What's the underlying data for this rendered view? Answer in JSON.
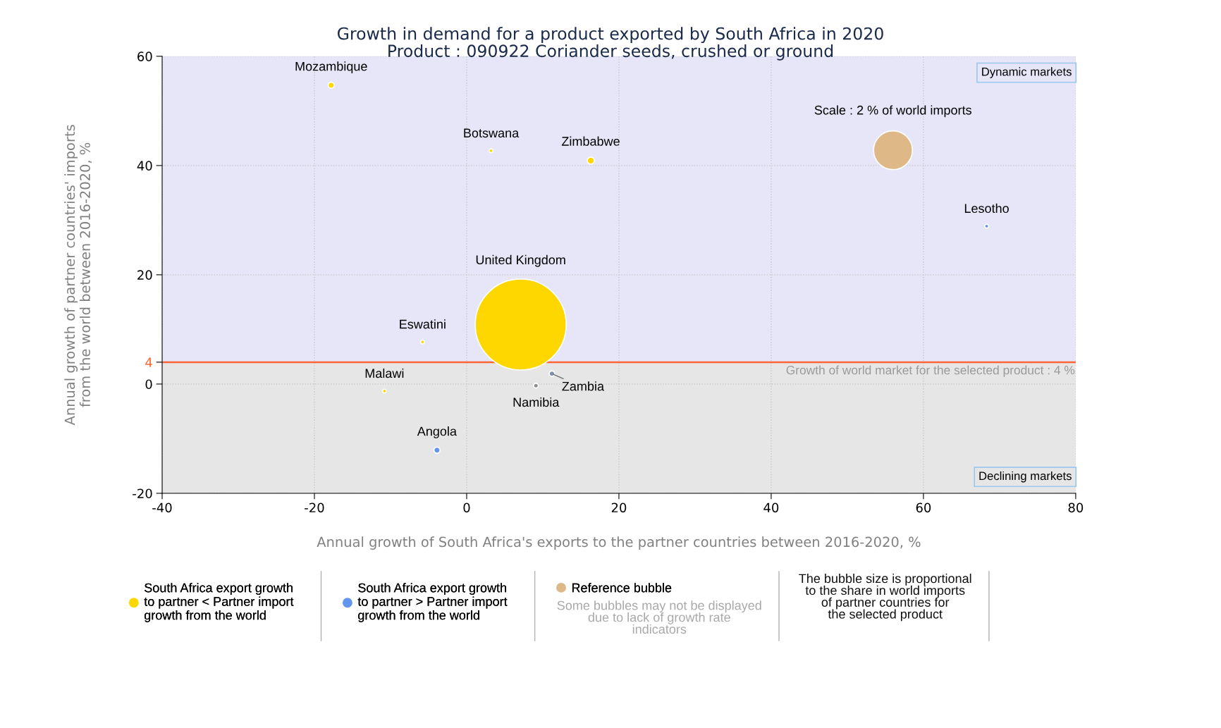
{
  "chart_data": {
    "type": "bubble",
    "title": "Growth in demand for a product exported by South Africa in 2020",
    "subtitle": "Product : 090922 Coriander seeds, crushed or ground",
    "xlabel": "Annual growth of South Africa's exports to the partner countries between 2016-2020, %",
    "ylabel": "Annual growth of partner countries' imports\nfrom the world between 2016-2020, %",
    "xlim": [
      -40,
      80
    ],
    "xticks": [
      -40,
      -20,
      0,
      20,
      40,
      60,
      80
    ],
    "ylim": [
      -20,
      60
    ],
    "yticks": [
      -20,
      0,
      {
        "value": 4,
        "label": "4"
      },
      20,
      40,
      60
    ],
    "grid": true,
    "legend": "bottom",
    "marker": "circle",
    "size_legend": [
      {
        "value": 2,
        "label": "Scale : 2 % of world imports"
      }
    ],
    "series": [
      {
        "name": "South Africa export growth\nto partner < Partner import\ngrowth from the world",
        "color": "#ffd700",
        "x": [
          -17.8,
          3.2,
          16.3,
          7.1,
          -5.8,
          -10.8
        ],
        "values": [
          54.7,
          42.7,
          40.9,
          10.9,
          7.7,
          -1.3
        ],
        "sizes": [
          0.05,
          0.02,
          0.065,
          11,
          0.02,
          0.02
        ]
      },
      {
        "name": "South Africa export growth\nto partner > Partner import\ngrowth from the world",
        "color": "#6495ed",
        "colors": [
          "#6495ed",
          "#6495ed",
          "#8c8c8c",
          "#7f8fb0"
        ],
        "x": [
          68.3,
          -3.9,
          9.1,
          11.2
        ],
        "values": [
          28.9,
          -12.1,
          -0.3,
          1.9
        ],
        "sizes": [
          0.02,
          0.05,
          0.03,
          0.04
        ]
      },
      {
        "name": "Reference bubble",
        "color": "#deb887"
      }
    ],
    "bands": [
      {
        "axis": "y",
        "from": 4,
        "to": 60,
        "label": "Dynamic markets",
        "color": "#e6e6f8"
      },
      {
        "axis": "y",
        "from": -20,
        "to": 4,
        "label": "Declining markets",
        "color": "#e6e6e6"
      }
    ],
    "ref_lines": [
      {
        "axis": "y",
        "value": 4,
        "label": "Growth of world market for the selected product : 4 %",
        "color": "#ff6633"
      }
    ],
    "annotations": [
      {
        "text": "Mozambique",
        "x": -17.8,
        "y": 54.7
      },
      {
        "text": "Botswana",
        "x": 3.2,
        "y": 42.7
      },
      {
        "text": "Zimbabwe",
        "x": 16.3,
        "y": 40.9
      },
      {
        "text": "United Kingdom",
        "x": 7.1,
        "y": 19.3
      },
      {
        "text": "Eswatini",
        "x": -5.8,
        "y": 7.7
      },
      {
        "text": "Malawi",
        "x": -10.8,
        "y": -1.3
      },
      {
        "text": "Lesotho",
        "x": 68.3,
        "y": 28.9
      },
      {
        "text": "Angola",
        "x": -3.9,
        "y": -12.1
      },
      {
        "text": "Namibia",
        "x": 9.1,
        "y": -0.3
      },
      {
        "text": "Zambia",
        "x": 11.2,
        "y": 1.9
      },
      "Some bubbles may not be displayed\ndue to lack of growth rate\nindicators",
      "The bubble size is proportional\nto the share in world imports\nof partner countries for\nthe selected product"
    ]
  }
}
